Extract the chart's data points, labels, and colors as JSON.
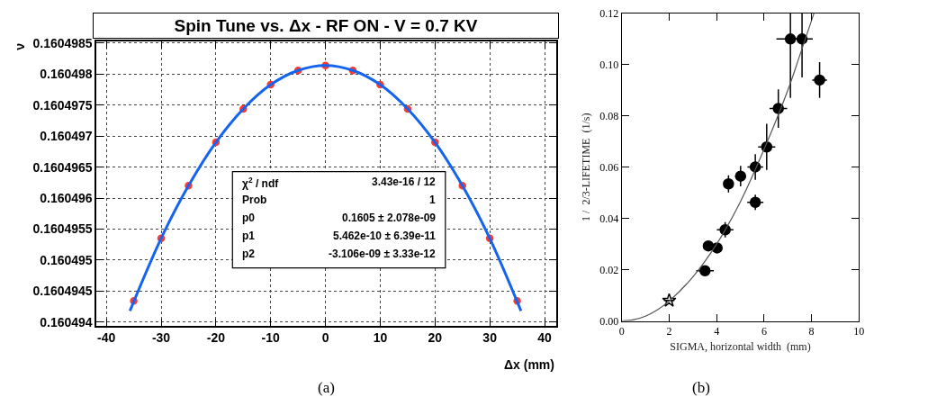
{
  "chart_data": [
    {
      "type": "scatter",
      "title": "Spin Tune vs. Δx - RF ON - V = 0.7 KV",
      "xlabel": "Δx (mm)",
      "ylabel": "ν",
      "xlim": [
        -41.8,
        42.1
      ],
      "xticks": [
        -40,
        -30,
        -20,
        -10,
        0,
        10,
        20,
        30,
        40
      ],
      "ylim": [
        0.16049394,
        0.16049853
      ],
      "yticks": [
        0.160494,
        0.1604945,
        0.160495,
        0.1604955,
        0.160496,
        0.1604965,
        0.160497,
        0.1604975,
        0.160498,
        0.1604985
      ],
      "grid": true,
      "series": [
        {
          "marker": "circle",
          "color": "#ff3b30",
          "x": [
            -35,
            -30,
            -25,
            -20,
            -15,
            -10,
            -5,
            0,
            5,
            10,
            15,
            20,
            25,
            30,
            35
          ],
          "values": [
            0.16049434,
            0.16049535,
            0.1604962,
            0.1604969,
            0.16049744,
            0.16049783,
            0.16049806,
            0.16049814,
            0.16049806,
            0.16049783,
            0.16049744,
            0.1604969,
            0.1604962,
            0.16049535,
            0.16049434
          ]
        },
        {
          "type": "line",
          "line_style": "solid",
          "color": "#1464f0",
          "x": [
            -35.7,
            -30,
            -25,
            -20,
            -15,
            -10,
            -5,
            0,
            5,
            10,
            15,
            20,
            25,
            30,
            35.7
          ],
          "values": [
            0.16049418,
            0.16049535,
            0.1604962,
            0.1604969,
            0.16049744,
            0.16049783,
            0.16049806,
            0.16049814,
            0.16049806,
            0.16049783,
            0.16049744,
            0.1604969,
            0.1604962,
            0.16049535,
            0.16049418
          ]
        }
      ],
      "annotations": [
        "χ$^{2}$ / ndf",
        "3.43e-16 / 12",
        "Prob",
        "1",
        "p0",
        "0.1605 ± 2.078e-09",
        "p1",
        "5.462e-10 ± 6.39e-11",
        "p2",
        "-3.106e-09 ± 3.33e-12",
        "(a)"
      ]
    },
    {
      "type": "scatter",
      "xlabel": "SIGMA, horizontal width  (mm)",
      "ylabel": "1 /  2/3-LIFETIME  (1/s)",
      "xlim": [
        0,
        10
      ],
      "xticks": [
        0,
        2,
        4,
        6,
        8,
        10
      ],
      "ylim": [
        0,
        0.12
      ],
      "yticks": [
        {
          "value": 0,
          "label": "0.00"
        },
        {
          "value": 0.02,
          "label": "0.02"
        },
        {
          "value": 0.04,
          "label": "0.04"
        },
        {
          "value": 0.06,
          "label": "0.06"
        },
        {
          "value": 0.08,
          "label": "0.08"
        },
        {
          "value": 0.1,
          "label": "0.10"
        },
        {
          "value": 0.12,
          "label": "0.12"
        }
      ],
      "grid": false,
      "series": [
        {
          "marker": "circle",
          "color": "#000000",
          "x": [
            3.51,
            3.65,
            4.02,
            4.36,
            4.5,
            5.01,
            5.63,
            5.63,
            6.11,
            6.6,
            7.11,
            7.6,
            8.34
          ],
          "values": [
            0.0196,
            0.0293,
            0.0285,
            0.0356,
            0.0535,
            0.0565,
            0.0601,
            0.0463,
            0.0679,
            0.0829,
            0.11,
            0.11,
            0.094
          ],
          "errors": [
            null,
            null,
            null,
            0.003,
            0.0033,
            0.004,
            0.005,
            0.003,
            0.009,
            0.0075,
            [
              0.087,
              0.12
            ],
            [
              0.095,
              0.12
            ],
            0.007
          ],
          "xerrors": [
            0.37,
            0.18,
            0.22,
            0.35,
            null,
            0.23,
            0.33,
            0.34,
            0.36,
            0.37,
            0.59,
            0.45,
            0.31
          ]
        },
        {
          "marker": "star",
          "color": "#000000",
          "x": [
            2.0
          ],
          "values": [
            0.008
          ],
          "xerrors": [
            0.22
          ]
        },
        {
          "type": "line",
          "line_style": "solid",
          "color": "#555555",
          "x": [
            0,
            0.5,
            1,
            1.5,
            2,
            3,
            4,
            5,
            6,
            7,
            7.5,
            8.1
          ],
          "values": [
            0,
            0.0005,
            0.0019,
            0.0043,
            0.0078,
            0.0172,
            0.03,
            0.0465,
            0.067,
            0.09,
            0.1035,
            0.12
          ]
        }
      ],
      "annotations": [
        "(b)"
      ]
    }
  ]
}
